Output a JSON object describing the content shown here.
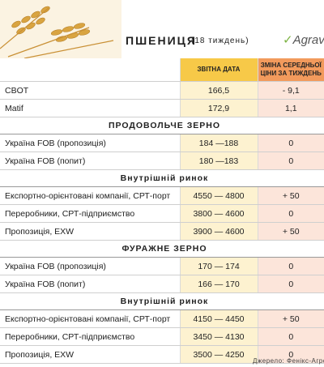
{
  "header": {
    "title": "ПШЕНИЦЯ",
    "subtitle": "(18 тиждень)",
    "logo": "Agraver"
  },
  "table": {
    "columns": [
      "ЗВІТНА ДАТА",
      "ЗМІНА СЕРЕДНЬОЇ ЦІНИ ЗА ТИЖДЕНЬ"
    ],
    "rows": [
      [
        "CBOT",
        "166,5",
        "- 9,1"
      ],
      [
        "Matif",
        "172,9",
        "1,1"
      ],
      [
        "ПРОДОВОЛЬЧЕ ЗЕРНО"
      ],
      [
        "Україна FOB (пропозиція)",
        "184 —188",
        "0"
      ],
      [
        "Україна FOB (попит)",
        "180 —183",
        "0"
      ],
      [
        "Внутрішній ринок"
      ],
      [
        "Експортно-орієнтовані компанії, СРТ-порт",
        "4550 — 4800",
        "+ 50"
      ],
      [
        "Переробники, СРТ-підприємство",
        "3800 — 4600",
        "0"
      ],
      [
        "Пропозиція, EXW",
        "3900 — 4600",
        "+ 50"
      ],
      [
        "ФУРАЖНЕ ЗЕРНО"
      ],
      [
        "Україна FOB (пропозиція)",
        "170 — 174",
        "0"
      ],
      [
        "Україна FOB (попит)",
        "166 — 170",
        "0"
      ],
      [
        "Внутрішній ринок"
      ],
      [
        "Експортно-орієнтовані компанії, СРТ-порт",
        "4150 — 4450",
        "+ 50"
      ],
      [
        "Переробники, СРТ-підприємство",
        "3450 — 4130",
        "0"
      ],
      [
        "Пропозиція, EXW",
        "3500 — 4250",
        "0"
      ]
    ]
  },
  "footer": {
    "source": "Джерело: Фенікс-Агро"
  }
}
